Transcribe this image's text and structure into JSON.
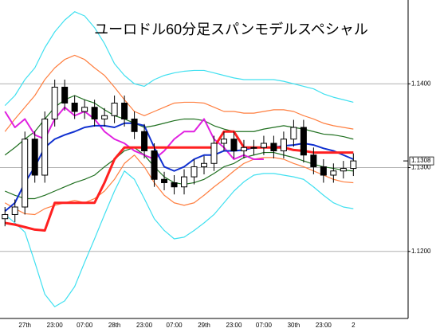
{
  "chart_data": {
    "type": "candlestick",
    "title": "ユーロドル60分足スパンモデルスペシャル",
    "categories": [
      null,
      null,
      "27th",
      null,
      null,
      "23:00",
      null,
      null,
      "07:00",
      null,
      null,
      "28th",
      null,
      null,
      "23:00",
      null,
      null,
      "07:00",
      null,
      null,
      "29th",
      null,
      null,
      "23:00",
      null,
      null,
      "07:00",
      null,
      null,
      "30th",
      null,
      null,
      "23:00",
      null,
      null,
      "2",
      null,
      null,
      null,
      null,
      null
    ],
    "candles": {
      "up_color": "#ffffff",
      "down_color": "#000000",
      "open": [
        1.1239,
        1.1244,
        1.1253,
        1.1334,
        1.1291,
        1.1358,
        1.1396,
        1.1377,
        1.1367,
        1.1372,
        1.1358,
        1.1362,
        1.1377,
        1.1358,
        1.1343,
        1.132,
        1.1286,
        1.1282,
        1.1277,
        1.1289,
        1.1301,
        1.1305,
        1.1329,
        1.1334,
        1.132,
        1.1324,
        1.1324,
        1.1329,
        1.132,
        1.1334,
        1.1348,
        1.1315,
        1.1301,
        1.1291,
        1.1296,
        1.1299,
        null,
        null,
        null,
        null,
        null
      ],
      "high": [
        1.1253,
        1.1262,
        1.1343,
        1.1343,
        1.1367,
        1.1405,
        1.1405,
        1.1386,
        1.1381,
        1.1381,
        1.1371,
        1.1386,
        1.1386,
        1.1367,
        1.1352,
        1.1329,
        1.1295,
        1.1291,
        1.1298,
        1.131,
        1.1314,
        1.1338,
        1.1343,
        1.1343,
        1.1333,
        1.1333,
        1.1338,
        1.1338,
        1.1343,
        1.1357,
        1.1357,
        1.1324,
        1.131,
        1.1305,
        1.1308,
        1.1317,
        null,
        null,
        null,
        null,
        null
      ],
      "low": [
        1.123,
        1.1235,
        1.1244,
        1.1282,
        1.1282,
        1.1349,
        1.1368,
        1.1358,
        1.1358,
        1.1349,
        1.1349,
        1.1353,
        1.1349,
        1.1334,
        1.1311,
        1.1277,
        1.1273,
        1.1268,
        1.1268,
        1.128,
        1.1292,
        1.1296,
        1.132,
        1.1311,
        1.1311,
        1.1315,
        1.1315,
        1.1311,
        1.1311,
        1.1325,
        1.1306,
        1.1292,
        1.1282,
        1.1282,
        1.1287,
        1.129,
        null,
        null,
        null,
        null,
        null
      ],
      "close": [
        1.1244,
        1.1253,
        1.1334,
        1.1291,
        1.1358,
        1.1396,
        1.1377,
        1.1367,
        1.1372,
        1.1358,
        1.1362,
        1.1377,
        1.1358,
        1.1343,
        1.132,
        1.1286,
        1.1282,
        1.1277,
        1.1289,
        1.1301,
        1.1305,
        1.1329,
        1.1334,
        1.132,
        1.1324,
        1.1324,
        1.1329,
        1.132,
        1.1334,
        1.1348,
        1.1315,
        1.1301,
        1.1291,
        1.1296,
        1.1299,
        1.1308,
        null,
        null,
        null,
        null,
        null
      ]
    },
    "series": [
      {
        "color": "#40e0f0",
        "values": [
          1.1374,
          1.1386,
          1.1405,
          1.1419,
          1.1443,
          1.1462,
          1.1476,
          1.1486,
          1.1481,
          1.1467,
          1.1448,
          1.1424,
          1.141,
          1.14,
          1.1397,
          1.1405,
          1.141,
          1.1413,
          1.1415,
          1.1416,
          1.1416,
          1.1413,
          1.141,
          1.1407,
          1.1405,
          1.1405,
          1.1405,
          1.1405,
          1.1403,
          1.14,
          1.1397,
          1.1394,
          1.1388,
          1.1384,
          1.1381,
          1.1378,
          null,
          null,
          null,
          null,
          null
        ]
      },
      {
        "color": "#40e0f0",
        "values": [
          1.1244,
          1.1234,
          1.1223,
          1.1187,
          1.1149,
          1.1134,
          1.1141,
          1.1158,
          1.1187,
          1.1215,
          1.1244,
          1.1272,
          1.1296,
          1.1286,
          1.1263,
          1.1239,
          1.1225,
          1.1215,
          1.1217,
          1.1225,
          1.1234,
          1.1244,
          1.1258,
          1.1272,
          1.1283,
          1.1291,
          1.1293,
          1.1293,
          1.1291,
          1.1289,
          1.1286,
          1.1277,
          1.1267,
          1.1258,
          1.1253,
          1.1251,
          null,
          null,
          null,
          null,
          null
        ]
      },
      {
        "color": "#ff7f40",
        "values": [
          1.1343,
          1.1358,
          1.1372,
          1.1386,
          1.1405,
          1.1419,
          1.1429,
          1.1434,
          1.1429,
          1.1419,
          1.141,
          1.1396,
          1.1381,
          1.1367,
          1.1362,
          1.1367,
          1.1372,
          1.1377,
          1.1378,
          1.1378,
          1.1377,
          1.1372,
          1.1367,
          1.1367,
          1.1365,
          1.1365,
          1.1367,
          1.1369,
          1.1369,
          1.1367,
          1.1362,
          1.1358,
          1.1353,
          1.135,
          1.1348,
          1.1346,
          null,
          null,
          null,
          null,
          null
        ]
      },
      {
        "color": "#ff7f40",
        "values": [
          1.1258,
          1.1251,
          1.1245,
          1.1244,
          1.1251,
          1.1255,
          1.1258,
          1.1261,
          1.1258,
          1.1263,
          1.1272,
          1.1286,
          1.1305,
          1.1315,
          1.1301,
          1.1282,
          1.1267,
          1.1258,
          1.1255,
          1.1258,
          1.1267,
          1.1277,
          1.1286,
          1.1296,
          1.1305,
          1.131,
          1.1312,
          1.1312,
          1.131,
          1.1305,
          1.1301,
          1.1296,
          1.1291,
          1.1286,
          1.1283,
          1.1282,
          null,
          null,
          null,
          null,
          null
        ]
      },
      {
        "color": "#207020",
        "values": [
          1.1315,
          1.1324,
          1.1334,
          1.1343,
          1.1358,
          1.1372,
          1.1381,
          1.1386,
          1.1381,
          1.1377,
          1.1369,
          1.1362,
          1.1358,
          1.1353,
          1.1348,
          1.135,
          1.1353,
          1.1356,
          1.1358,
          1.1358,
          1.1356,
          1.135,
          1.1346,
          1.1343,
          1.1343,
          1.1343,
          1.1346,
          1.1348,
          1.135,
          1.1348,
          1.1346,
          1.1343,
          1.134,
          1.1339,
          1.1337,
          1.1334,
          null,
          null,
          null,
          null,
          null
        ]
      },
      {
        "color": "#207020",
        "values": [
          1.1272,
          1.1267,
          1.1263,
          1.1263,
          1.1267,
          1.1272,
          1.1277,
          1.1282,
          1.1286,
          1.1291,
          1.1301,
          1.131,
          1.132,
          1.1324,
          1.1315,
          1.1301,
          1.1289,
          1.1282,
          1.128,
          1.1282,
          1.1286,
          1.1293,
          1.1301,
          1.1305,
          1.1312,
          1.1315,
          1.1318,
          1.1318,
          1.1315,
          1.1312,
          1.1308,
          1.1304,
          1.1301,
          1.1299,
          1.1297,
          1.1296,
          null,
          null,
          null,
          null,
          null
        ]
      },
      {
        "color": "#e020e0",
        "values": [
          1.1367,
          1.1348,
          1.1358,
          1.1339,
          1.1334,
          1.1358,
          1.1372,
          1.1362,
          1.1367,
          1.1358,
          1.1343,
          1.1334,
          1.1329,
          1.132,
          1.1315,
          1.131,
          1.132,
          1.1334,
          1.1343,
          1.1343,
          1.1358,
          1.1334,
          1.1324,
          1.131,
          1.1315,
          1.131,
          1.131,
          null,
          null,
          null,
          null,
          null,
          null,
          null,
          null,
          null,
          null,
          null,
          null,
          null,
          null
        ]
      },
      {
        "color": "#1030d0",
        "values": [
          1.1248,
          1.1258,
          1.1282,
          1.1301,
          1.1324,
          1.1334,
          1.1339,
          1.1343,
          1.1348,
          1.135,
          1.135,
          1.1348,
          1.1353,
          1.1353,
          1.135,
          1.1324,
          1.1301,
          1.1296,
          1.1301,
          1.131,
          1.1315,
          1.1315,
          1.132,
          1.132,
          1.1321,
          1.1324,
          1.1324,
          1.1324,
          1.1326,
          1.1327,
          1.1329,
          1.1327,
          1.1323,
          1.132,
          1.1315,
          1.131,
          null,
          null,
          null,
          null,
          null
        ]
      },
      {
        "color": "#ff2020",
        "values": [
          1.1234,
          1.1232,
          1.1229,
          1.1226,
          1.1225,
          1.1258,
          1.1258,
          1.1258,
          1.1258,
          1.1258,
          1.1282,
          1.131,
          1.1324,
          1.1324,
          1.1324,
          1.1324,
          1.1324,
          1.1324,
          1.1324,
          1.1324,
          1.1324,
          1.1324,
          1.1343,
          1.1343,
          1.1324,
          1.1324,
          1.1324,
          1.1324,
          1.1324,
          1.1321,
          1.132,
          1.1318,
          1.1318,
          1.1318,
          1.1318,
          1.1318,
          null,
          null,
          null,
          null,
          null
        ]
      }
    ],
    "last_price": {
      "value": 1.1308,
      "label": "1.1308"
    },
    "ylim": [
      1.112,
      1.15
    ],
    "yticks": [
      {
        "value": 1.12,
        "label": "1.1200"
      },
      {
        "value": 1.13,
        "label": "1.1300"
      },
      {
        "value": 1.14,
        "label": "1.1400"
      }
    ],
    "grid": true
  }
}
